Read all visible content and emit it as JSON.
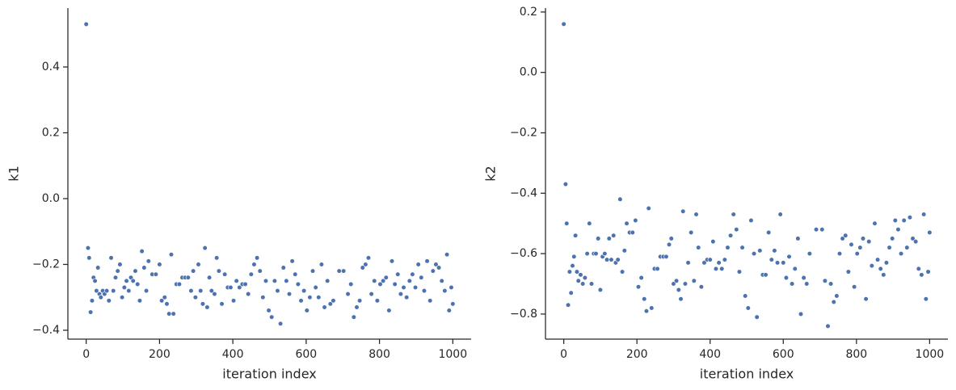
{
  "chart_data": [
    {
      "type": "scatter",
      "xlabel": "iteration index",
      "ylabel": "k1",
      "color": "#4c72b0",
      "xlim": [
        -50,
        1050
      ],
      "xticks": [
        0,
        200,
        400,
        600,
        800,
        1000
      ],
      "ylim": [
        -0.427,
        0.579
      ],
      "yticks": [
        {
          "value": -0.4,
          "label": "−0.4"
        },
        {
          "value": -0.2,
          "label": "−0.2"
        },
        {
          "value": 0,
          "label": "0.0"
        },
        0.2,
        0.4
      ],
      "x": [
        0,
        5,
        8,
        12,
        16,
        20,
        24,
        28,
        32,
        36,
        40,
        45,
        50,
        56,
        62,
        68,
        74,
        80,
        86,
        92,
        98,
        104,
        110,
        116,
        122,
        128,
        134,
        140,
        146,
        152,
        158,
        164,
        170,
        180,
        190,
        200,
        206,
        214,
        220,
        226,
        232,
        238,
        246,
        254,
        262,
        270,
        278,
        286,
        292,
        298,
        306,
        312,
        318,
        324,
        330,
        336,
        342,
        350,
        356,
        362,
        370,
        378,
        386,
        394,
        402,
        410,
        418,
        426,
        434,
        442,
        450,
        458,
        466,
        474,
        482,
        490,
        498,
        506,
        514,
        522,
        530,
        538,
        546,
        554,
        562,
        570,
        578,
        586,
        594,
        602,
        610,
        618,
        626,
        634,
        642,
        650,
        658,
        666,
        674,
        690,
        702,
        714,
        722,
        730,
        738,
        746,
        754,
        762,
        770,
        778,
        786,
        794,
        802,
        810,
        818,
        826,
        834,
        842,
        850,
        858,
        866,
        874,
        882,
        890,
        898,
        906,
        914,
        922,
        930,
        938,
        946,
        954,
        962,
        970,
        978,
        984,
        990,
        996,
        1000
      ],
      "values": [
        0.53,
        -0.15,
        -0.18,
        -0.345,
        -0.31,
        -0.24,
        -0.25,
        -0.28,
        -0.21,
        -0.29,
        -0.3,
        -0.28,
        -0.29,
        -0.28,
        -0.31,
        -0.18,
        -0.28,
        -0.24,
        -0.22,
        -0.2,
        -0.3,
        -0.27,
        -0.25,
        -0.28,
        -0.24,
        -0.25,
        -0.22,
        -0.26,
        -0.31,
        -0.16,
        -0.21,
        -0.28,
        -0.19,
        -0.23,
        -0.23,
        -0.2,
        -0.31,
        -0.3,
        -0.32,
        -0.35,
        -0.17,
        -0.35,
        -0.26,
        -0.26,
        -0.24,
        -0.24,
        -0.24,
        -0.28,
        -0.22,
        -0.3,
        -0.2,
        -0.28,
        -0.32,
        -0.15,
        -0.33,
        -0.24,
        -0.28,
        -0.29,
        -0.18,
        -0.22,
        -0.32,
        -0.23,
        -0.27,
        -0.27,
        -0.31,
        -0.25,
        -0.27,
        -0.26,
        -0.26,
        -0.29,
        -0.23,
        -0.2,
        -0.18,
        -0.22,
        -0.3,
        -0.25,
        -0.34,
        -0.36,
        -0.25,
        -0.28,
        -0.38,
        -0.21,
        -0.25,
        -0.29,
        -0.19,
        -0.23,
        -0.26,
        -0.31,
        -0.28,
        -0.34,
        -0.3,
        -0.22,
        -0.27,
        -0.3,
        -0.2,
        -0.33,
        -0.25,
        -0.32,
        -0.31,
        -0.22,
        -0.22,
        -0.29,
        -0.26,
        -0.36,
        -0.33,
        -0.31,
        -0.21,
        -0.2,
        -0.18,
        -0.29,
        -0.25,
        -0.31,
        -0.26,
        -0.25,
        -0.24,
        -0.34,
        -0.19,
        -0.26,
        -0.23,
        -0.29,
        -0.27,
        -0.3,
        -0.25,
        -0.23,
        -0.27,
        -0.2,
        -0.24,
        -0.28,
        -0.19,
        -0.31,
        -0.22,
        -0.2,
        -0.21,
        -0.25,
        -0.28,
        -0.17,
        -0.34,
        -0.27,
        -0.32
      ]
    },
    {
      "type": "scatter",
      "xlabel": "iteration index",
      "ylabel": "k2",
      "color": "#4c72b0",
      "xlim": [
        -50,
        1050
      ],
      "xticks": [
        0,
        200,
        400,
        600,
        800,
        1000
      ],
      "ylim": [
        -0.883,
        0.213
      ],
      "yticks": [
        {
          "value": -0.8,
          "label": "−0.8"
        },
        {
          "value": -0.6,
          "label": "−0.6"
        },
        {
          "value": -0.4,
          "label": "−0.4"
        },
        {
          "value": -0.2,
          "label": "−0.2"
        },
        {
          "value": 0,
          "label": "0.0"
        },
        0.2
      ],
      "x": [
        0,
        5,
        8,
        12,
        16,
        20,
        24,
        28,
        32,
        36,
        40,
        46,
        52,
        58,
        64,
        70,
        76,
        82,
        88,
        94,
        100,
        106,
        112,
        118,
        124,
        130,
        136,
        142,
        148,
        154,
        160,
        166,
        172,
        180,
        188,
        196,
        204,
        212,
        220,
        226,
        232,
        240,
        248,
        256,
        264,
        272,
        280,
        288,
        294,
        300,
        308,
        314,
        320,
        326,
        332,
        340,
        348,
        356,
        362,
        368,
        376,
        384,
        392,
        400,
        408,
        416,
        424,
        432,
        440,
        448,
        456,
        464,
        472,
        480,
        488,
        496,
        504,
        512,
        520,
        528,
        536,
        544,
        552,
        560,
        568,
        576,
        584,
        592,
        600,
        608,
        616,
        624,
        632,
        640,
        648,
        656,
        664,
        672,
        690,
        706,
        714,
        722,
        730,
        738,
        746,
        754,
        762,
        770,
        778,
        786,
        794,
        802,
        810,
        818,
        826,
        834,
        842,
        850,
        858,
        866,
        874,
        882,
        890,
        898,
        906,
        914,
        922,
        930,
        938,
        946,
        954,
        962,
        970,
        978,
        984,
        990,
        996,
        1000
      ],
      "values": [
        0.16,
        -0.37,
        -0.5,
        -0.77,
        -0.66,
        -0.73,
        -0.64,
        -0.61,
        -0.54,
        -0.66,
        -0.69,
        -0.67,
        -0.7,
        -0.68,
        -0.6,
        -0.5,
        -0.7,
        -0.6,
        -0.6,
        -0.55,
        -0.72,
        -0.61,
        -0.6,
        -0.62,
        -0.55,
        -0.62,
        -0.54,
        -0.63,
        -0.62,
        -0.42,
        -0.66,
        -0.59,
        -0.5,
        -0.53,
        -0.53,
        -0.49,
        -0.71,
        -0.68,
        -0.75,
        -0.79,
        -0.45,
        -0.78,
        -0.65,
        -0.65,
        -0.61,
        -0.61,
        -0.61,
        -0.57,
        -0.55,
        -0.7,
        -0.69,
        -0.72,
        -0.75,
        -0.46,
        -0.7,
        -0.63,
        -0.53,
        -0.69,
        -0.47,
        -0.58,
        -0.71,
        -0.63,
        -0.62,
        -0.62,
        -0.56,
        -0.65,
        -0.63,
        -0.65,
        -0.62,
        -0.58,
        -0.54,
        -0.47,
        -0.52,
        -0.66,
        -0.58,
        -0.74,
        -0.78,
        -0.49,
        -0.6,
        -0.81,
        -0.59,
        -0.67,
        -0.67,
        -0.53,
        -0.62,
        -0.59,
        -0.63,
        -0.47,
        -0.63,
        -0.68,
        -0.61,
        -0.7,
        -0.65,
        -0.55,
        -0.8,
        -0.68,
        -0.7,
        -0.6,
        -0.52,
        -0.52,
        -0.69,
        -0.84,
        -0.7,
        -0.76,
        -0.74,
        -0.6,
        -0.55,
        -0.54,
        -0.66,
        -0.57,
        -0.71,
        -0.6,
        -0.58,
        -0.55,
        -0.75,
        -0.56,
        -0.64,
        -0.5,
        -0.62,
        -0.65,
        -0.67,
        -0.63,
        -0.58,
        -0.55,
        -0.49,
        -0.52,
        -0.6,
        -0.49,
        -0.58,
        -0.48,
        -0.55,
        -0.56,
        -0.65,
        -0.67,
        -0.47,
        -0.75,
        -0.66,
        -0.53
      ]
    }
  ]
}
